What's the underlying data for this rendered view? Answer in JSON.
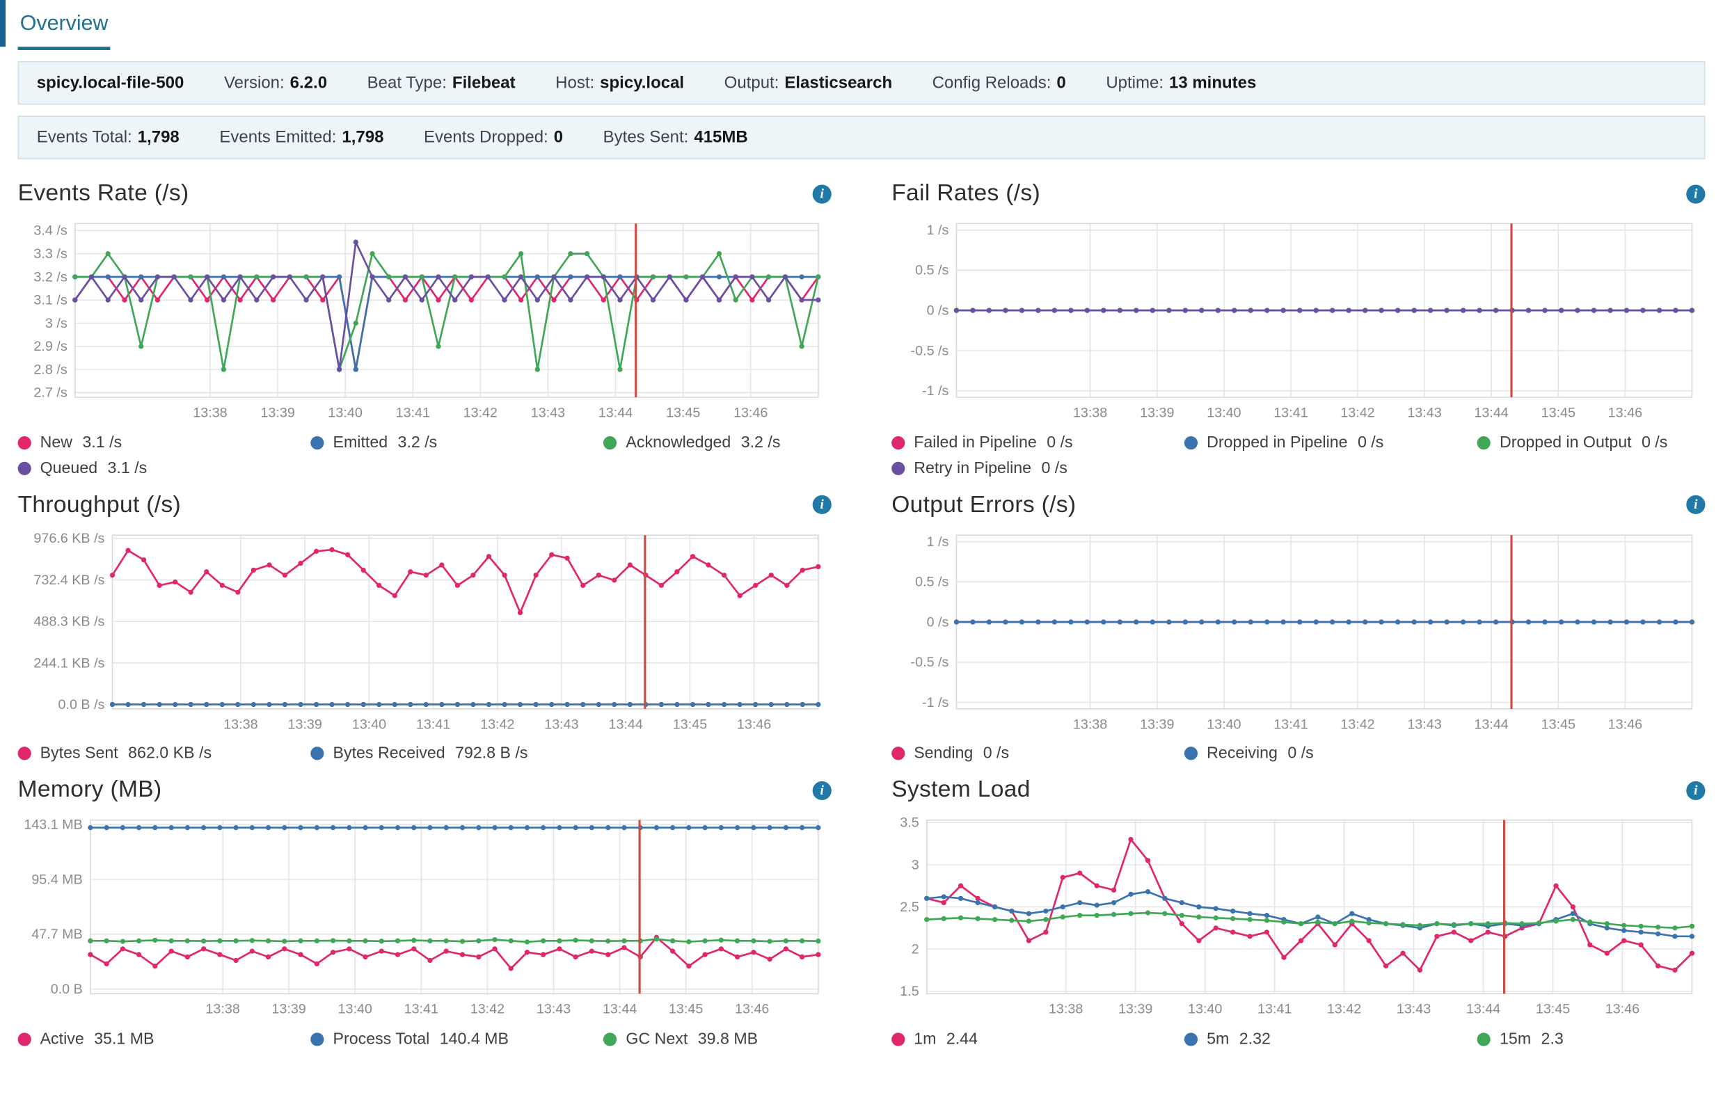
{
  "tab": {
    "label": "Overview"
  },
  "colors": {
    "accent": "#20708f",
    "bar_bg": "#eef5f8",
    "bar_border": "#cfe0e8",
    "info_icon": "#2179a8",
    "pink": "#e0276d",
    "blue": "#3b73af",
    "green": "#3fa756",
    "purple": "#6b4fa0",
    "marker": "#ca4d45"
  },
  "icons": {
    "info": "i"
  },
  "info_bar": {
    "items": [
      {
        "label": "",
        "value": "spicy.local-file-500"
      },
      {
        "label": "Version:",
        "value": "6.2.0"
      },
      {
        "label": "Beat Type:",
        "value": "Filebeat"
      },
      {
        "label": "Host:",
        "value": "spicy.local"
      },
      {
        "label": "Output:",
        "value": "Elasticsearch"
      },
      {
        "label": "Config Reloads:",
        "value": "0"
      },
      {
        "label": "Uptime:",
        "value": "13 minutes"
      }
    ]
  },
  "stats_bar": {
    "items": [
      {
        "label": "Events Total:",
        "value": "1,798"
      },
      {
        "label": "Events Emitted:",
        "value": "1,798"
      },
      {
        "label": "Events Dropped:",
        "value": "0"
      },
      {
        "label": "Bytes Sent:",
        "value": "415MB"
      }
    ]
  },
  "chart_data": {
    "events_rate": {
      "type": "line",
      "title": "Events Rate (/s)",
      "ylim": [
        2.68,
        3.43
      ],
      "ytick_values": [
        3.4,
        3.3,
        3.2,
        3.1,
        3,
        2.9,
        2.8,
        2.7
      ],
      "ytick_labels": [
        "3.4 /s",
        "3.3 /s",
        "3.2 /s",
        "3.1 /s",
        "3 /s",
        "2.9 /s",
        "2.8 /s",
        "2.7 /s"
      ],
      "x_range": [
        36,
        47
      ],
      "xtick_values": [
        38,
        39,
        40,
        41,
        42,
        43,
        44,
        45,
        46
      ],
      "xtick_labels": [
        "13:38",
        "13:39",
        "13:40",
        "13:41",
        "13:42",
        "13:43",
        "13:44",
        "13:45",
        "13:46"
      ],
      "marker_x": 44.3,
      "series": [
        {
          "name": "New",
          "color": "pink",
          "values": [
            3.1,
            3.2,
            3.2,
            3.1,
            3.2,
            3.1,
            3.2,
            3.2,
            3.1,
            3.2,
            3.1,
            3.2,
            3.1,
            3.2,
            3.2,
            3.1,
            3.2,
            2.8,
            3.2,
            3.2,
            3.1,
            3.2,
            3.1,
            3.2,
            3.1,
            3.2,
            3.2,
            3.1,
            3.2,
            3.1,
            3.2,
            3.2,
            3.1,
            3.2,
            3.1,
            3.2,
            3.2,
            3.1,
            3.2,
            3.1,
            3.2,
            3.1,
            3.2,
            3.2,
            3.1,
            3.2
          ]
        },
        {
          "name": "Emitted",
          "color": "blue",
          "values": [
            3.2,
            3.2,
            3.2,
            3.2,
            3.2,
            3.2,
            3.2,
            3.2,
            3.2,
            3.2,
            3.2,
            3.2,
            3.2,
            3.2,
            3.2,
            3.2,
            3.2,
            2.8,
            3.2,
            3.2,
            3.2,
            3.2,
            3.2,
            3.2,
            3.2,
            3.2,
            3.2,
            3.2,
            3.2,
            3.2,
            3.2,
            3.2,
            3.2,
            3.2,
            3.2,
            3.2,
            3.2,
            3.2,
            3.2,
            3.2,
            3.2,
            3.2,
            3.2,
            3.2,
            3.2,
            3.2
          ]
        },
        {
          "name": "Acknowledged",
          "color": "green",
          "values": [
            3.2,
            3.2,
            3.3,
            3.2,
            2.9,
            3.2,
            3.2,
            3.2,
            3.2,
            2.8,
            3.2,
            3.2,
            3.2,
            3.2,
            3.2,
            3.2,
            2.8,
            3.0,
            3.3,
            3.2,
            3.2,
            3.2,
            2.9,
            3.2,
            3.2,
            3.2,
            3.2,
            3.3,
            2.8,
            3.2,
            3.3,
            3.3,
            3.2,
            2.8,
            3.2,
            3.2,
            3.2,
            3.2,
            3.2,
            3.3,
            3.1,
            3.2,
            3.2,
            3.2,
            2.9,
            3.2
          ]
        },
        {
          "name": "Queued",
          "color": "purple",
          "values": [
            3.1,
            3.2,
            3.1,
            3.2,
            3.1,
            3.2,
            3.2,
            3.1,
            3.2,
            3.1,
            3.2,
            3.1,
            3.2,
            3.2,
            3.1,
            3.2,
            2.8,
            3.35,
            3.2,
            3.1,
            3.2,
            3.1,
            3.2,
            3.1,
            3.2,
            3.2,
            3.1,
            3.2,
            3.1,
            3.2,
            3.1,
            3.2,
            3.2,
            3.1,
            3.2,
            3.1,
            3.2,
            3.1,
            3.2,
            3.1,
            3.2,
            3.2,
            3.1,
            3.2,
            3.1,
            3.1
          ]
        }
      ],
      "legend": [
        {
          "label": "New",
          "value": "3.1 /s",
          "color": "pink"
        },
        {
          "label": "Emitted",
          "value": "3.2 /s",
          "color": "blue"
        },
        {
          "label": "Acknowledged",
          "value": "3.2 /s",
          "color": "green"
        },
        {
          "label": "Queued",
          "value": "3.1 /s",
          "color": "purple"
        }
      ]
    },
    "fail_rates": {
      "type": "line",
      "title": "Fail Rates (/s)",
      "ylim": [
        -1.08,
        1.08
      ],
      "ytick_values": [
        1,
        0.5,
        0,
        -0.5,
        -1
      ],
      "ytick_labels": [
        "1 /s",
        "0.5 /s",
        "0 /s",
        "-0.5 /s",
        "-1 /s"
      ],
      "x_range": [
        36,
        47
      ],
      "xtick_values": [
        38,
        39,
        40,
        41,
        42,
        43,
        44,
        45,
        46
      ],
      "xtick_labels": [
        "13:38",
        "13:39",
        "13:40",
        "13:41",
        "13:42",
        "13:43",
        "13:44",
        "13:45",
        "13:46"
      ],
      "marker_x": 44.3,
      "series": [
        {
          "name": "Failed in Pipeline",
          "color": "pink",
          "fill": {
            "value": 0,
            "count": 46
          }
        },
        {
          "name": "Dropped in Pipeline",
          "color": "blue",
          "fill": {
            "value": 0,
            "count": 46
          }
        },
        {
          "name": "Dropped in Output",
          "color": "green",
          "fill": {
            "value": 0,
            "count": 46
          }
        },
        {
          "name": "Retry in Pipeline",
          "color": "purple",
          "fill": {
            "value": 0,
            "count": 46
          }
        }
      ],
      "legend": [
        {
          "label": "Failed in Pipeline",
          "value": "0 /s",
          "color": "pink"
        },
        {
          "label": "Dropped in Pipeline",
          "value": "0 /s",
          "color": "blue"
        },
        {
          "label": "Dropped in Output",
          "value": "0 /s",
          "color": "green"
        },
        {
          "label": "Retry in Pipeline",
          "value": "0 /s",
          "color": "purple"
        }
      ]
    },
    "throughput": {
      "type": "line",
      "title": "Throughput (/s)",
      "ylim": [
        -25,
        995
      ],
      "ytick_values": [
        976.6,
        732.4,
        488.3,
        244.1,
        0
      ],
      "ytick_labels": [
        "976.6 KB /s",
        "732.4 KB /s",
        "488.3 KB /s",
        "244.1 KB /s",
        "0.0 B /s"
      ],
      "x_range": [
        36,
        47
      ],
      "xtick_values": [
        38,
        39,
        40,
        41,
        42,
        43,
        44,
        45,
        46
      ],
      "xtick_labels": [
        "13:38",
        "13:39",
        "13:40",
        "13:41",
        "13:42",
        "13:43",
        "13:44",
        "13:45",
        "13:46"
      ],
      "marker_x": 44.3,
      "series": [
        {
          "name": "Bytes Sent",
          "color": "pink",
          "values": [
            760,
            905,
            850,
            700,
            720,
            660,
            780,
            700,
            660,
            790,
            820,
            760,
            830,
            900,
            910,
            880,
            790,
            700,
            640,
            780,
            760,
            820,
            700,
            760,
            870,
            760,
            540,
            760,
            880,
            860,
            700,
            760,
            730,
            820,
            760,
            700,
            780,
            870,
            820,
            760,
            640,
            700,
            760,
            700,
            790,
            810
          ]
        },
        {
          "name": "Bytes Received",
          "color": "blue",
          "fill": {
            "value": 0.8,
            "count": 46
          }
        }
      ],
      "legend": [
        {
          "label": "Bytes Sent",
          "value": "862.0 KB /s",
          "color": "pink"
        },
        {
          "label": "Bytes Received",
          "value": "792.8 B /s",
          "color": "blue"
        }
      ]
    },
    "output_errors": {
      "type": "line",
      "title": "Output Errors (/s)",
      "ylim": [
        -1.08,
        1.08
      ],
      "ytick_values": [
        1,
        0.5,
        0,
        -0.5,
        -1
      ],
      "ytick_labels": [
        "1 /s",
        "0.5 /s",
        "0 /s",
        "-0.5 /s",
        "-1 /s"
      ],
      "x_range": [
        36,
        47
      ],
      "xtick_values": [
        38,
        39,
        40,
        41,
        42,
        43,
        44,
        45,
        46
      ],
      "xtick_labels": [
        "13:38",
        "13:39",
        "13:40",
        "13:41",
        "13:42",
        "13:43",
        "13:44",
        "13:45",
        "13:46"
      ],
      "marker_x": 44.3,
      "series": [
        {
          "name": "Sending",
          "color": "pink",
          "fill": {
            "value": 0,
            "count": 46
          }
        },
        {
          "name": "Receiving",
          "color": "blue",
          "fill": {
            "value": 0,
            "count": 46
          }
        }
      ],
      "legend": [
        {
          "label": "Sending",
          "value": "0 /s",
          "color": "pink"
        },
        {
          "label": "Receiving",
          "value": "0 /s",
          "color": "blue"
        }
      ]
    },
    "memory": {
      "type": "line",
      "title": "Memory (MB)",
      "ylim": [
        -4,
        147
      ],
      "ytick_values": [
        143.1,
        95.4,
        47.7,
        0
      ],
      "ytick_labels": [
        "143.1 MB",
        "95.4 MB",
        "47.7 MB",
        "0.0 B"
      ],
      "x_range": [
        36,
        47
      ],
      "xtick_values": [
        38,
        39,
        40,
        41,
        42,
        43,
        44,
        45,
        46
      ],
      "xtick_labels": [
        "13:38",
        "13:39",
        "13:40",
        "13:41",
        "13:42",
        "13:43",
        "13:44",
        "13:45",
        "13:46"
      ],
      "marker_x": 44.3,
      "series": [
        {
          "name": "Active",
          "color": "pink",
          "values": [
            30,
            22,
            35,
            30,
            20,
            33,
            28,
            35,
            30,
            25,
            33,
            28,
            35,
            30,
            22,
            32,
            35,
            28,
            33,
            30,
            35,
            25,
            33,
            30,
            28,
            35,
            18,
            32,
            30,
            35,
            28,
            33,
            30,
            36,
            28,
            45,
            33,
            20,
            30,
            35,
            28,
            32,
            26,
            35,
            28,
            30
          ]
        },
        {
          "name": "Process Total",
          "color": "blue",
          "fill": {
            "value": 140.4,
            "count": 46
          }
        },
        {
          "name": "GC Next",
          "color": "green",
          "values": [
            42,
            42,
            41.5,
            42,
            42.5,
            42,
            42,
            41.8,
            42,
            42,
            42.3,
            42,
            41.6,
            42,
            42,
            42.2,
            42,
            42,
            41.7,
            42,
            42.4,
            42,
            42,
            41.5,
            42,
            43,
            42,
            41,
            42,
            42,
            42.5,
            42,
            41.8,
            42,
            42,
            43.5,
            42,
            41.2,
            42,
            42.6,
            42,
            42,
            41.5,
            42,
            42,
            41.8
          ]
        }
      ],
      "legend": [
        {
          "label": "Active",
          "value": "35.1 MB",
          "color": "pink"
        },
        {
          "label": "Process Total",
          "value": "140.4 MB",
          "color": "blue"
        },
        {
          "label": "GC Next",
          "value": "39.8 MB",
          "color": "green"
        }
      ]
    },
    "system_load": {
      "type": "line",
      "title": "System Load",
      "ylim": [
        1.47,
        3.53
      ],
      "ytick_values": [
        3.5,
        3,
        2.5,
        2,
        1.5
      ],
      "ytick_labels": [
        "3.5",
        "3",
        "2.5",
        "2",
        "1.5"
      ],
      "x_range": [
        36,
        47
      ],
      "xtick_values": [
        38,
        39,
        40,
        41,
        42,
        43,
        44,
        45,
        46
      ],
      "xtick_labels": [
        "13:38",
        "13:39",
        "13:40",
        "13:41",
        "13:42",
        "13:43",
        "13:44",
        "13:45",
        "13:46"
      ],
      "marker_x": 44.3,
      "series": [
        {
          "name": "1m",
          "color": "pink",
          "values": [
            2.6,
            2.55,
            2.75,
            2.6,
            2.5,
            2.45,
            2.1,
            2.2,
            2.85,
            2.9,
            2.75,
            2.7,
            3.3,
            3.05,
            2.6,
            2.3,
            2.1,
            2.25,
            2.2,
            2.15,
            2.2,
            1.9,
            2.1,
            2.3,
            2.05,
            2.3,
            2.1,
            1.8,
            1.95,
            1.75,
            2.15,
            2.2,
            2.1,
            2.2,
            2.15,
            2.25,
            2.3,
            2.75,
            2.5,
            2.05,
            1.95,
            2.1,
            2.05,
            1.8,
            1.75,
            1.95
          ]
        },
        {
          "name": "5m",
          "color": "blue",
          "values": [
            2.6,
            2.62,
            2.6,
            2.55,
            2.5,
            2.45,
            2.42,
            2.45,
            2.5,
            2.55,
            2.52,
            2.55,
            2.65,
            2.68,
            2.6,
            2.55,
            2.5,
            2.48,
            2.45,
            2.42,
            2.4,
            2.35,
            2.3,
            2.38,
            2.3,
            2.42,
            2.35,
            2.3,
            2.28,
            2.25,
            2.3,
            2.28,
            2.3,
            2.27,
            2.3,
            2.28,
            2.3,
            2.35,
            2.42,
            2.3,
            2.25,
            2.22,
            2.2,
            2.18,
            2.15,
            2.15
          ]
        },
        {
          "name": "15m",
          "color": "green",
          "values": [
            2.35,
            2.36,
            2.37,
            2.36,
            2.35,
            2.34,
            2.33,
            2.35,
            2.38,
            2.4,
            2.4,
            2.41,
            2.42,
            2.43,
            2.42,
            2.4,
            2.38,
            2.37,
            2.36,
            2.35,
            2.34,
            2.32,
            2.3,
            2.32,
            2.3,
            2.33,
            2.31,
            2.3,
            2.29,
            2.28,
            2.3,
            2.29,
            2.3,
            2.3,
            2.31,
            2.3,
            2.31,
            2.33,
            2.35,
            2.32,
            2.3,
            2.28,
            2.27,
            2.26,
            2.25,
            2.27
          ]
        }
      ],
      "legend": [
        {
          "label": "1m",
          "value": "2.44",
          "color": "pink"
        },
        {
          "label": "5m",
          "value": "2.32",
          "color": "blue"
        },
        {
          "label": "15m",
          "value": "2.3",
          "color": "green"
        }
      ]
    }
  }
}
